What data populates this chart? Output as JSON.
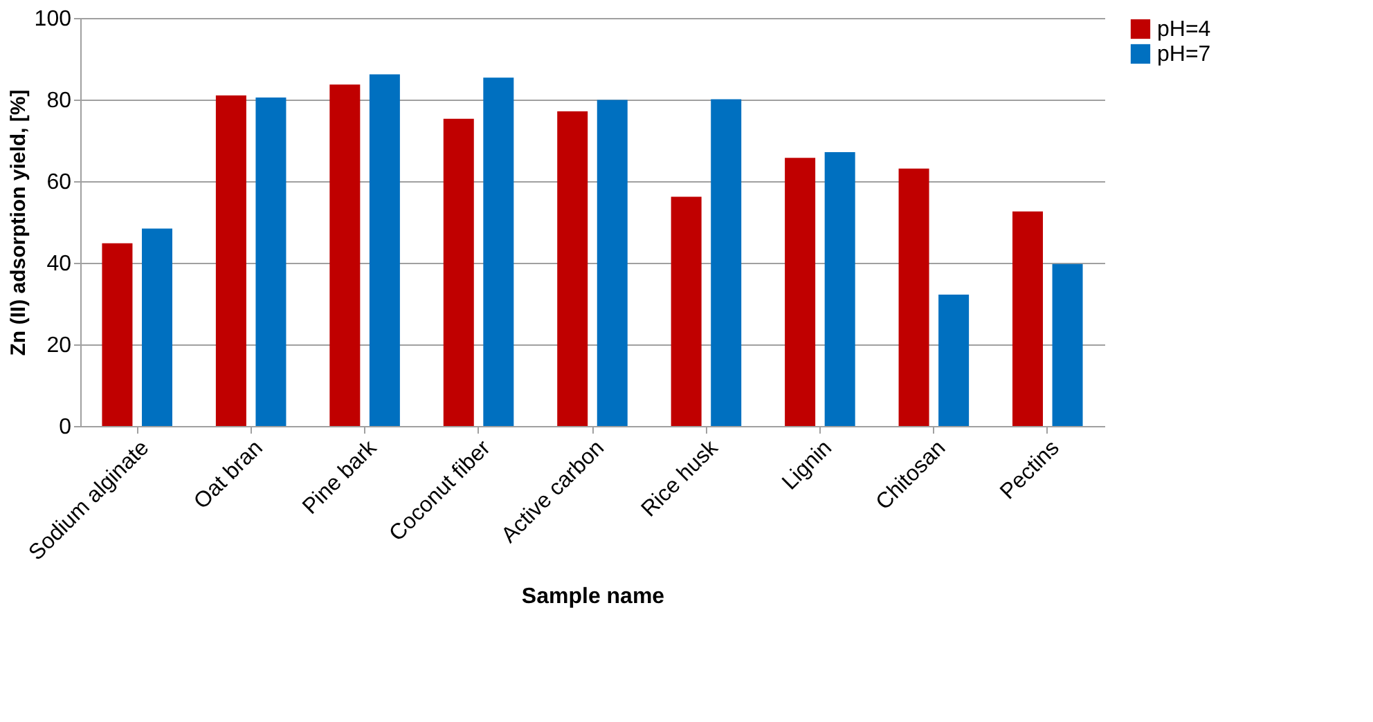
{
  "chart_data": {
    "type": "bar",
    "xlabel": "Sample name",
    "ylabel": "Zn (II) adsorption yield, [%]",
    "categories": [
      "Sodium alginate",
      "Oat bran",
      "Pine bark",
      "Coconut fiber",
      "Active carbon",
      "Rice husk",
      "Lignin",
      "Chitosan",
      "Pectins"
    ],
    "series": [
      {
        "name": "pH=4",
        "color": "#c00000",
        "values": [
          44.8,
          81.0,
          83.7,
          75.3,
          77.1,
          56.2,
          65.7,
          63.1,
          52.6
        ]
      },
      {
        "name": "pH=7",
        "color": "#0070c0",
        "values": [
          48.4,
          80.5,
          86.2,
          85.4,
          79.9,
          80.1,
          67.1,
          32.2,
          39.7
        ]
      }
    ],
    "ylim": [
      0,
      100
    ],
    "yticks": [
      0,
      20,
      40,
      60,
      80,
      100
    ],
    "grid": "y",
    "legend": "right"
  }
}
